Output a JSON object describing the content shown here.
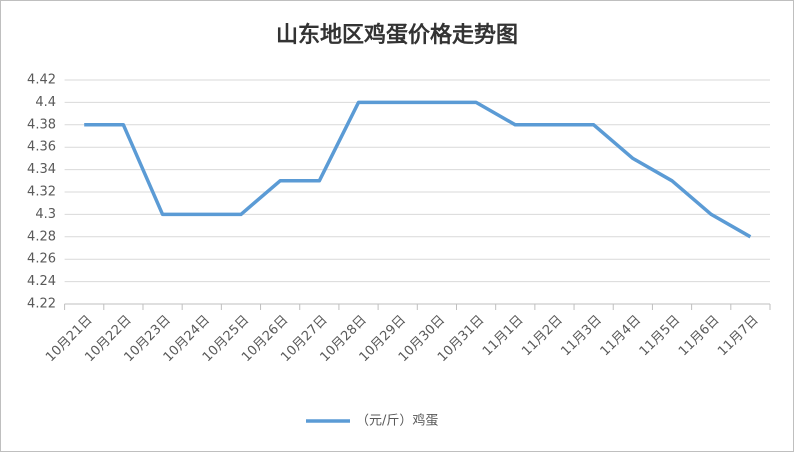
{
  "chart_data": {
    "type": "line",
    "title": "山东地区鸡蛋价格走势图",
    "categories": [
      "10月21日",
      "10月22日",
      "10月23日",
      "10月24日",
      "10月25日",
      "10月26日",
      "10月27日",
      "10月28日",
      "10月29日",
      "10月30日",
      "10月31日",
      "11月1日",
      "11月2日",
      "11月3日",
      "11月4日",
      "11月5日",
      "11月6日",
      "11月7日"
    ],
    "series": [
      {
        "name": "（元/斤）鸡蛋",
        "color": "#5b9bd5",
        "values": [
          4.38,
          4.38,
          4.3,
          4.3,
          4.3,
          4.33,
          4.33,
          4.4,
          4.4,
          4.4,
          4.4,
          4.38,
          4.38,
          4.38,
          4.35,
          4.33,
          4.3,
          4.28
        ]
      }
    ],
    "ylim": [
      4.22,
      4.42
    ],
    "yticks": [
      4.22,
      4.24,
      4.26,
      4.28,
      4.3,
      4.32,
      4.34,
      4.36,
      4.38,
      4.4,
      4.42
    ],
    "grid": true,
    "legend": "bottom"
  }
}
